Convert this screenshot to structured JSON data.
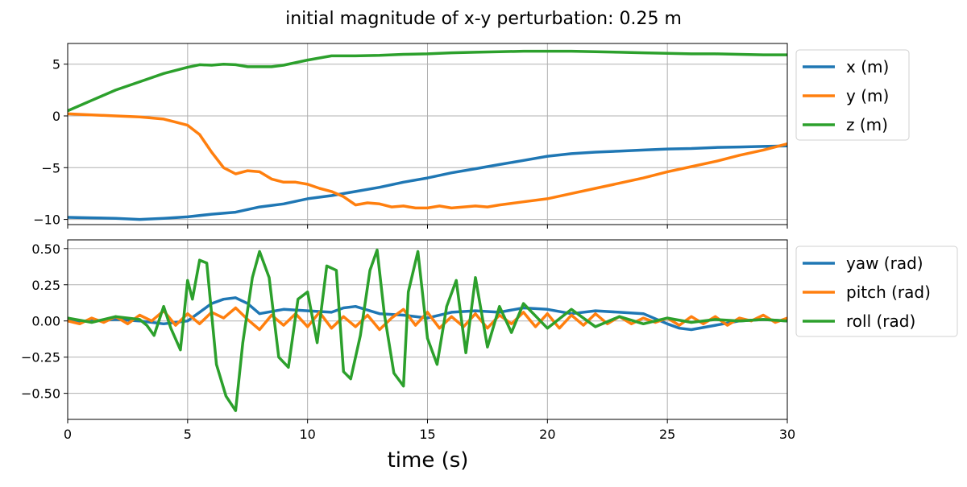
{
  "chart_data": {
    "title": "initial magnitude of x-y perturbation: 0.25 m",
    "xlabel": "time (s)",
    "colors": {
      "blue": "#1f77b4",
      "orange": "#ff7f0e",
      "green": "#2ca02c"
    },
    "panels": [
      {
        "type": "line",
        "xlim": [
          0,
          30
        ],
        "ylim": [
          -10.5,
          7.0
        ],
        "xticks": [
          0,
          5,
          10,
          15,
          20,
          25,
          30
        ],
        "yticks": [
          -10,
          -5,
          0,
          5
        ],
        "ytick_labels": [
          "−10",
          "−5",
          "0",
          "5"
        ],
        "show_x_tick_labels": false,
        "grid": true,
        "legend_placement": "outside-right-top",
        "series": [
          {
            "name": "x (m)",
            "color": "#1f77b4",
            "x": [
              0,
              1,
              2,
              3,
              4,
              5,
              6,
              7,
              8,
              9,
              10,
              11,
              12,
              13,
              14,
              15,
              16,
              17,
              18,
              19,
              20,
              21,
              22,
              23,
              24,
              25,
              26,
              27,
              28,
              29,
              30
            ],
            "y": [
              -9.8,
              -9.85,
              -9.9,
              -10.0,
              -9.9,
              -9.75,
              -9.5,
              -9.3,
              -8.8,
              -8.5,
              -8.0,
              -7.7,
              -7.3,
              -6.9,
              -6.4,
              -6.0,
              -5.5,
              -5.1,
              -4.7,
              -4.3,
              -3.9,
              -3.65,
              -3.5,
              -3.4,
              -3.3,
              -3.2,
              -3.15,
              -3.05,
              -3.0,
              -2.95,
              -2.9
            ]
          },
          {
            "name": "y (m)",
            "color": "#ff7f0e",
            "x": [
              0,
              1,
              2,
              3,
              4,
              4.5,
              5,
              5.5,
              6,
              6.5,
              7,
              7.5,
              8,
              8.5,
              9,
              9.5,
              10,
              10.5,
              11,
              11.5,
              12,
              12.5,
              13,
              13.5,
              14,
              14.5,
              15,
              15.5,
              16,
              16.5,
              17,
              17.5,
              18,
              19,
              20,
              21,
              22,
              23,
              24,
              25,
              26,
              27,
              28,
              29,
              30
            ],
            "y": [
              0.2,
              0.1,
              0.0,
              -0.1,
              -0.3,
              -0.6,
              -0.9,
              -1.8,
              -3.5,
              -5.0,
              -5.6,
              -5.3,
              -5.4,
              -6.1,
              -6.4,
              -6.4,
              -6.6,
              -7.0,
              -7.3,
              -7.8,
              -8.6,
              -8.4,
              -8.5,
              -8.8,
              -8.7,
              -8.9,
              -8.9,
              -8.7,
              -8.9,
              -8.8,
              -8.7,
              -8.8,
              -8.6,
              -8.3,
              -8.0,
              -7.5,
              -7.0,
              -6.5,
              -6.0,
              -5.4,
              -4.9,
              -4.4,
              -3.8,
              -3.3,
              -2.7
            ]
          },
          {
            "name": "z (m)",
            "color": "#2ca02c",
            "x": [
              0,
              1,
              2,
              3,
              4,
              5,
              5.5,
              6,
              6.5,
              7,
              7.5,
              8,
              8.5,
              9,
              10,
              11,
              12,
              13,
              14,
              15,
              16,
              17,
              18,
              19,
              20,
              21,
              22,
              23,
              24,
              25,
              26,
              27,
              28,
              29,
              30
            ],
            "y": [
              0.5,
              1.5,
              2.5,
              3.3,
              4.1,
              4.7,
              4.95,
              4.9,
              5.0,
              4.95,
              4.75,
              4.75,
              4.75,
              4.9,
              5.4,
              5.8,
              5.8,
              5.85,
              5.95,
              6.0,
              6.1,
              6.15,
              6.2,
              6.25,
              6.25,
              6.25,
              6.2,
              6.15,
              6.1,
              6.05,
              6.0,
              6.0,
              5.95,
              5.9,
              5.9
            ]
          }
        ]
      },
      {
        "type": "line",
        "xlim": [
          0,
          30
        ],
        "ylim": [
          -0.68,
          0.56
        ],
        "xticks": [
          0,
          5,
          10,
          15,
          20,
          25,
          30
        ],
        "xtick_labels": [
          "0",
          "5",
          "10",
          "15",
          "20",
          "25",
          "30"
        ],
        "yticks": [
          -0.5,
          -0.25,
          0.0,
          0.25,
          0.5
        ],
        "ytick_labels": [
          "−0.50",
          "−0.25",
          "0.00",
          "0.25",
          "0.50"
        ],
        "show_x_tick_labels": true,
        "grid": true,
        "legend_placement": "outside-right-top",
        "series": [
          {
            "name": "yaw (rad)",
            "color": "#1f77b4",
            "x": [
              0,
              1,
              2,
              3,
              4,
              5,
              5.5,
              6,
              6.5,
              7,
              7.5,
              8,
              9,
              10,
              11,
              11.5,
              12,
              13,
              14,
              15,
              16,
              17,
              18,
              19,
              20,
              21,
              22,
              23,
              24,
              25,
              25.5,
              26,
              27,
              28,
              29,
              30
            ],
            "y": [
              0.0,
              0.0,
              0.01,
              0.0,
              -0.02,
              0.0,
              0.06,
              0.12,
              0.15,
              0.16,
              0.12,
              0.05,
              0.08,
              0.07,
              0.06,
              0.09,
              0.1,
              0.05,
              0.04,
              0.02,
              0.06,
              0.07,
              0.06,
              0.09,
              0.08,
              0.05,
              0.07,
              0.06,
              0.05,
              -0.02,
              -0.05,
              -0.06,
              -0.03,
              0.0,
              0.01,
              0.0
            ]
          },
          {
            "name": "pitch (rad)",
            "color": "#ff7f0e",
            "x": [
              0,
              0.5,
              1,
              1.5,
              2,
              2.5,
              3,
              3.5,
              4,
              4.5,
              5,
              5.5,
              6,
              6.5,
              7,
              7.5,
              8,
              8.5,
              9,
              9.5,
              10,
              10.5,
              11,
              11.5,
              12,
              12.5,
              13,
              13.5,
              14,
              14.5,
              15,
              15.5,
              16,
              16.5,
              17,
              17.5,
              18,
              18.5,
              19,
              19.5,
              20,
              20.5,
              21,
              21.5,
              22,
              22.5,
              23,
              23.5,
              24,
              24.5,
              25,
              25.5,
              26,
              26.5,
              27,
              27.5,
              28,
              28.5,
              29,
              29.5,
              30
            ],
            "y": [
              0.0,
              -0.02,
              0.02,
              -0.01,
              0.03,
              -0.02,
              0.04,
              0.0,
              0.07,
              -0.03,
              0.05,
              -0.02,
              0.06,
              0.02,
              0.09,
              0.01,
              -0.06,
              0.04,
              -0.03,
              0.05,
              -0.04,
              0.06,
              -0.05,
              0.03,
              -0.04,
              0.04,
              -0.06,
              0.02,
              0.08,
              -0.03,
              0.06,
              -0.05,
              0.03,
              -0.04,
              0.05,
              -0.05,
              0.04,
              -0.02,
              0.06,
              -0.04,
              0.05,
              -0.05,
              0.04,
              -0.03,
              0.05,
              -0.02,
              0.03,
              -0.02,
              0.02,
              -0.01,
              0.02,
              -0.03,
              0.03,
              -0.02,
              0.03,
              -0.03,
              0.02,
              0.0,
              0.04,
              -0.01,
              0.02
            ]
          },
          {
            "name": "roll (rad)",
            "color": "#2ca02c",
            "x": [
              0,
              1,
              2,
              3,
              3.3,
              3.6,
              4,
              4.3,
              4.7,
              5,
              5.2,
              5.5,
              5.8,
              6.2,
              6.6,
              7,
              7.3,
              7.7,
              8,
              8.4,
              8.8,
              9.2,
              9.6,
              10,
              10.4,
              10.8,
              11.2,
              11.5,
              11.8,
              12.2,
              12.6,
              12.9,
              13.2,
              13.6,
              14,
              14.2,
              14.6,
              15,
              15.4,
              15.8,
              16.2,
              16.6,
              17,
              17.5,
              18,
              18.5,
              19,
              20,
              21,
              22,
              23,
              24,
              25,
              26,
              27,
              28,
              29,
              30
            ],
            "y": [
              0.02,
              -0.01,
              0.03,
              0.01,
              -0.03,
              -0.1,
              0.1,
              -0.05,
              -0.2,
              0.28,
              0.15,
              0.42,
              0.4,
              -0.3,
              -0.52,
              -0.62,
              -0.15,
              0.3,
              0.48,
              0.3,
              -0.25,
              -0.32,
              0.15,
              0.2,
              -0.15,
              0.38,
              0.35,
              -0.35,
              -0.4,
              -0.1,
              0.35,
              0.49,
              0.05,
              -0.36,
              -0.45,
              0.2,
              0.48,
              -0.12,
              -0.3,
              0.1,
              0.28,
              -0.22,
              0.3,
              -0.18,
              0.1,
              -0.08,
              0.12,
              -0.05,
              0.08,
              -0.04,
              0.03,
              -0.02,
              0.02,
              -0.01,
              0.01,
              0.0,
              0.01,
              0.0
            ]
          }
        ]
      }
    ]
  }
}
